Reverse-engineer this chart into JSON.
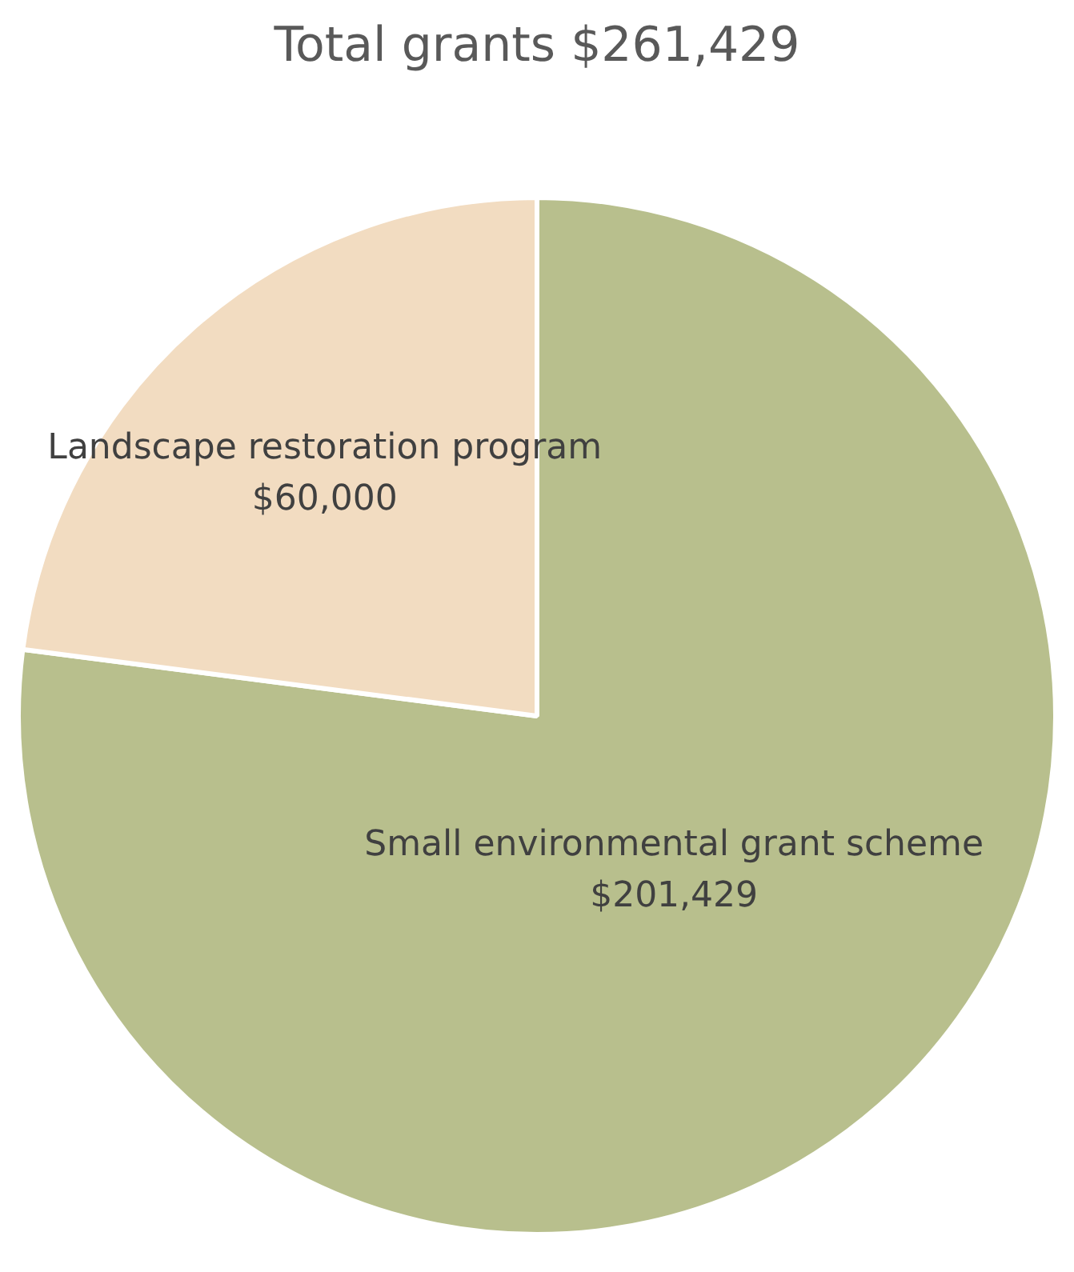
{
  "chart_data": {
    "type": "pie",
    "title": "Total grants $261,429",
    "categories": [
      "Small environmental grant scheme",
      "Landscape restoration program"
    ],
    "values": [
      201429,
      60000
    ],
    "colors": [
      "#b8bf8d",
      "#f2dcc1"
    ],
    "value_labels": [
      "$201,429",
      "$60,000"
    ],
    "legend": false
  }
}
